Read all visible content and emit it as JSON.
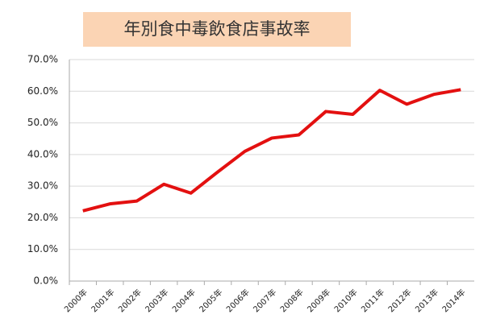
{
  "chart_data": {
    "type": "line",
    "title": "年別食中毒飲食店事故率",
    "categories": [
      "2000年",
      "2001年",
      "2002年",
      "2003年",
      "2004年",
      "2005年",
      "2006年",
      "2007年",
      "2008年",
      "2009年",
      "2010年",
      "2011年",
      "2012年",
      "2013年",
      "2014年"
    ],
    "series": [
      {
        "name": "飲食店事故率",
        "color": "#e31010",
        "values": [
          22.2,
          24.4,
          25.3,
          30.6,
          27.8,
          34.5,
          41.0,
          45.2,
          46.2,
          53.6,
          52.7,
          60.3,
          55.9,
          59.0,
          60.5
        ]
      }
    ],
    "ylim": [
      0,
      70
    ],
    "yticks": [
      {
        "value": 0,
        "label": "0.0%"
      },
      {
        "value": 10,
        "label": "10.0%"
      },
      {
        "value": 20,
        "label": "20.0%"
      },
      {
        "value": 30,
        "label": "30.0%"
      },
      {
        "value": 40,
        "label": "40.0%"
      },
      {
        "value": 50,
        "label": "50.0%"
      },
      {
        "value": 60,
        "label": "60.0%"
      },
      {
        "value": 70,
        "label": "70.0%"
      }
    ],
    "grid": true
  }
}
